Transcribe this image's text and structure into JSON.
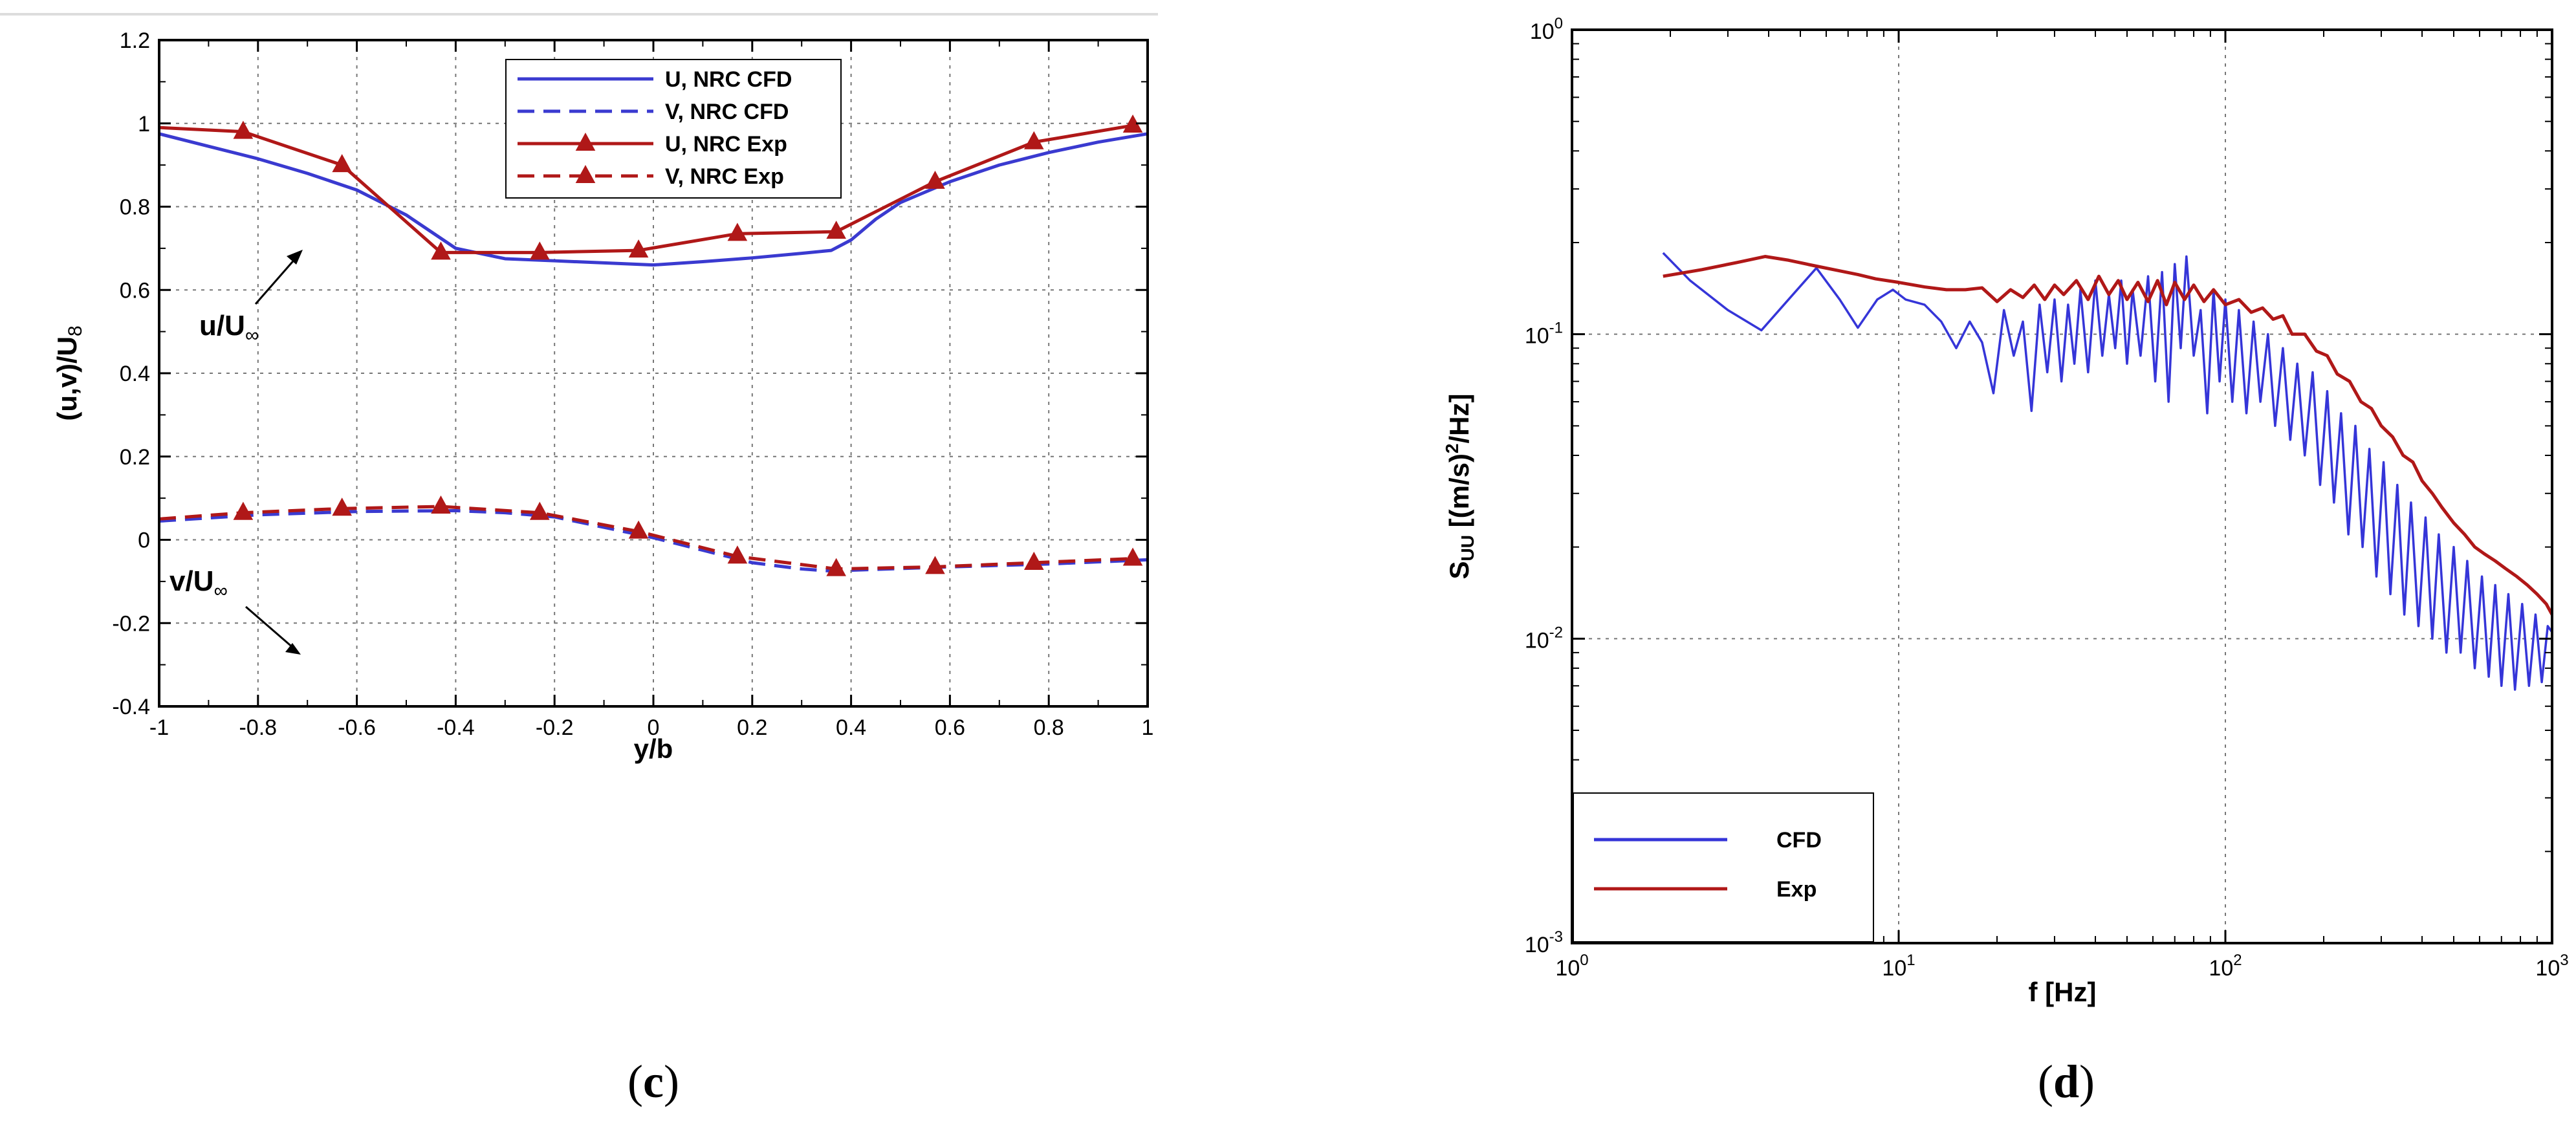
{
  "chart_data": [
    {
      "panel": "c",
      "type": "line",
      "title": "",
      "xlabel": "y/b",
      "ylabel": "(u,v)/U",
      "ylabel_subscript": "8",
      "xlim": [
        -1,
        1
      ],
      "ylim": [
        -0.4,
        1.2
      ],
      "grid": true,
      "legend_position": "top-center",
      "x_ticks": [
        "-1",
        "-0.8",
        "-0.6",
        "-0.4",
        "-0.2",
        "0",
        "0.2",
        "0.4",
        "0.6",
        "0.8",
        "1"
      ],
      "y_ticks": [
        "-0.4",
        "-0.2",
        "0",
        "0.2",
        "0.4",
        "0.6",
        "0.8",
        "1",
        "1.2"
      ],
      "annotations": [
        {
          "text": "u/U",
          "subscript": "∞",
          "x": -0.6,
          "y": 0.64,
          "arrow_to": [
            -0.52,
            0.82
          ]
        },
        {
          "text": "v/U",
          "subscript": "∞",
          "x": -0.65,
          "y": 0.22,
          "arrow_to": [
            -0.56,
            0.1
          ]
        }
      ],
      "series": [
        {
          "name": "U, NRC CFD",
          "color": "#3a3ad0",
          "style": "solid",
          "marker": "none",
          "x": [
            -1,
            -0.9,
            -0.8,
            -0.7,
            -0.6,
            -0.5,
            -0.45,
            -0.4,
            -0.3,
            -0.2,
            -0.1,
            0,
            0.1,
            0.2,
            0.3,
            0.36,
            0.4,
            0.45,
            0.5,
            0.6,
            0.7,
            0.8,
            0.9,
            1
          ],
          "y": [
            0.975,
            0.945,
            0.915,
            0.88,
            0.84,
            0.78,
            0.74,
            0.7,
            0.675,
            0.67,
            0.665,
            0.66,
            0.668,
            0.677,
            0.688,
            0.695,
            0.72,
            0.77,
            0.81,
            0.86,
            0.9,
            0.93,
            0.955,
            0.975
          ]
        },
        {
          "name": "V, NRC CFD",
          "color": "#3a3ad0",
          "style": "dashed",
          "marker": "none",
          "x": [
            -1,
            -0.8,
            -0.6,
            -0.4,
            -0.3,
            -0.2,
            -0.1,
            0,
            0.1,
            0.2,
            0.3,
            0.36,
            0.4,
            0.6,
            0.8,
            1
          ],
          "y": [
            0.045,
            0.06,
            0.068,
            0.07,
            0.065,
            0.055,
            0.03,
            0.005,
            -0.025,
            -0.055,
            -0.07,
            -0.075,
            -0.073,
            -0.065,
            -0.058,
            -0.048
          ]
        },
        {
          "name": "U, NRC Exp",
          "color": "#b01818",
          "style": "solid",
          "marker": "triangle",
          "x": [
            -1,
            -0.83,
            -0.63,
            -0.43,
            -0.23,
            -0.03,
            0.17,
            0.37,
            0.57,
            0.77,
            0.97
          ],
          "y": [
            0.99,
            0.98,
            0.9,
            0.69,
            0.69,
            0.695,
            0.735,
            0.74,
            0.86,
            0.955,
            0.995
          ]
        },
        {
          "name": "V, NRC Exp",
          "color": "#b01818",
          "style": "dashed",
          "marker": "triangle",
          "x": [
            -1,
            -0.83,
            -0.63,
            -0.43,
            -0.23,
            -0.03,
            0.17,
            0.37,
            0.57,
            0.77,
            0.97
          ],
          "y": [
            0.05,
            0.065,
            0.075,
            0.08,
            0.065,
            0.02,
            -0.04,
            -0.07,
            -0.065,
            -0.055,
            -0.045
          ]
        }
      ]
    },
    {
      "panel": "d",
      "type": "line",
      "title": "",
      "xlabel": "f [Hz]",
      "ylabel": "S",
      "ylabel_subscript": "UU",
      "ylabel_rest": " [(m/s)",
      "ylabel_sup": "2",
      "ylabel_end": "/Hz]",
      "xscale": "log",
      "yscale": "log",
      "xlim": [
        1,
        1000
      ],
      "ylim": [
        0.001,
        1
      ],
      "grid": true,
      "legend_position": "bottom-left",
      "x_ticks": [
        {
          "base": "10",
          "exp": "0"
        },
        {
          "base": "10",
          "exp": "1"
        },
        {
          "base": "10",
          "exp": "2"
        },
        {
          "base": "10",
          "exp": "3"
        }
      ],
      "y_ticks": [
        {
          "base": "10",
          "exp": "-3"
        },
        {
          "base": "10",
          "exp": "-2"
        },
        {
          "base": "10",
          "exp": "-1"
        },
        {
          "base": "10",
          "exp": "0"
        }
      ],
      "series": [
        {
          "name": "CFD",
          "color": "#3535d8",
          "style": "solid",
          "x": [
            1.9,
            2.3,
            3,
            3.8,
            4.6,
            5.6,
            6.6,
            7.5,
            8.6,
            9.6,
            10.5,
            12,
            13.5,
            15,
            16.5,
            18,
            19.5,
            21,
            22.5,
            24,
            25.5,
            27,
            28.5,
            30,
            31.5,
            33,
            34.5,
            36,
            38,
            40,
            42,
            44,
            46,
            48,
            50,
            52,
            55,
            58,
            61,
            64,
            67,
            70,
            73,
            76,
            80,
            84,
            88,
            92,
            96,
            100,
            105,
            110,
            116,
            122,
            128,
            135,
            142,
            150,
            158,
            166,
            175,
            185,
            195,
            205,
            215,
            226,
            238,
            250,
            263,
            276,
            290,
            305,
            320,
            336,
            353,
            370,
            390,
            410,
            430,
            450,
            475,
            500,
            525,
            550,
            580,
            610,
            640,
            670,
            700,
            735,
            770,
            810,
            850,
            890,
            930,
            970,
            1000
          ],
          "y": [
            0.185,
            0.15,
            0.12,
            0.103,
            0.13,
            0.165,
            0.13,
            0.105,
            0.13,
            0.14,
            0.13,
            0.125,
            0.11,
            0.09,
            0.11,
            0.094,
            0.064,
            0.12,
            0.085,
            0.11,
            0.056,
            0.125,
            0.075,
            0.13,
            0.07,
            0.125,
            0.08,
            0.14,
            0.075,
            0.15,
            0.085,
            0.135,
            0.09,
            0.15,
            0.08,
            0.14,
            0.085,
            0.155,
            0.07,
            0.16,
            0.06,
            0.17,
            0.09,
            0.18,
            0.085,
            0.12,
            0.055,
            0.14,
            0.07,
            0.13,
            0.06,
            0.12,
            0.055,
            0.11,
            0.06,
            0.1,
            0.05,
            0.09,
            0.045,
            0.08,
            0.04,
            0.075,
            0.032,
            0.065,
            0.028,
            0.055,
            0.022,
            0.05,
            0.02,
            0.042,
            0.016,
            0.038,
            0.014,
            0.032,
            0.012,
            0.028,
            0.011,
            0.025,
            0.01,
            0.022,
            0.009,
            0.02,
            0.009,
            0.018,
            0.008,
            0.016,
            0.0075,
            0.015,
            0.007,
            0.014,
            0.0068,
            0.013,
            0.007,
            0.012,
            0.0072,
            0.011,
            0.0105
          ]
        },
        {
          "name": "Exp",
          "color": "#b01818",
          "style": "solid",
          "x": [
            1.9,
            2.5,
            3.2,
            3.9,
            4.6,
            5.5,
            6.5,
            7.5,
            8.5,
            10,
            12,
            14,
            16,
            18,
            20,
            22,
            24,
            26,
            28,
            30,
            32,
            35,
            38,
            41,
            44,
            47,
            50,
            54,
            58,
            62,
            66,
            70,
            75,
            80,
            86,
            92,
            100,
            110,
            120,
            130,
            140,
            150,
            160,
            175,
            190,
            205,
            220,
            240,
            260,
            280,
            300,
            325,
            350,
            375,
            400,
            430,
            460,
            500,
            540,
            580,
            620,
            670,
            720,
            780,
            840,
            900,
            960,
            1000
          ],
          "y": [
            0.155,
            0.163,
            0.172,
            0.18,
            0.175,
            0.168,
            0.162,
            0.157,
            0.152,
            0.148,
            0.143,
            0.14,
            0.14,
            0.142,
            0.128,
            0.14,
            0.132,
            0.145,
            0.13,
            0.145,
            0.135,
            0.15,
            0.13,
            0.155,
            0.135,
            0.15,
            0.13,
            0.148,
            0.128,
            0.15,
            0.125,
            0.148,
            0.13,
            0.145,
            0.128,
            0.14,
            0.125,
            0.13,
            0.118,
            0.122,
            0.112,
            0.115,
            0.1,
            0.1,
            0.088,
            0.085,
            0.074,
            0.07,
            0.06,
            0.057,
            0.05,
            0.046,
            0.04,
            0.038,
            0.033,
            0.03,
            0.027,
            0.024,
            0.022,
            0.02,
            0.019,
            0.018,
            0.017,
            0.016,
            0.015,
            0.014,
            0.013,
            0.012
          ]
        }
      ]
    }
  ],
  "labels": {
    "c_open": "(",
    "c_letter": "c",
    "c_close": ")",
    "d_open": "(",
    "d_letter": "d",
    "d_close": ")"
  },
  "annotation_texts": {
    "u_main": "u/U",
    "u_sub": "∞",
    "v_main": "v/U",
    "v_sub": "∞"
  }
}
